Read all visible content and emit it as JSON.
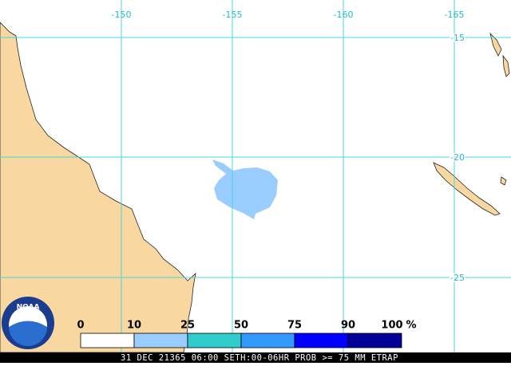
{
  "map": {
    "lon_labels": [
      -150,
      -155,
      -160,
      -165
    ],
    "lat_labels": [
      -15,
      -20,
      -25
    ],
    "land_color": "#f8d8a0",
    "grid_color": "#40d8e0",
    "field_color": "#99ccff"
  },
  "legend": {
    "ticks": [
      0,
      10,
      25,
      50,
      75,
      90,
      100
    ],
    "unit": "%",
    "colors": [
      "#ffffff",
      "#99ccff",
      "#33cccc",
      "#3399ff",
      "#0000ff",
      "#000099"
    ]
  },
  "logo": {
    "text": "NOAA"
  },
  "footer": {
    "text": "31 DEC 21365 06:00 SETH:00-06HR PROB >= 75 MM ETRAP"
  }
}
